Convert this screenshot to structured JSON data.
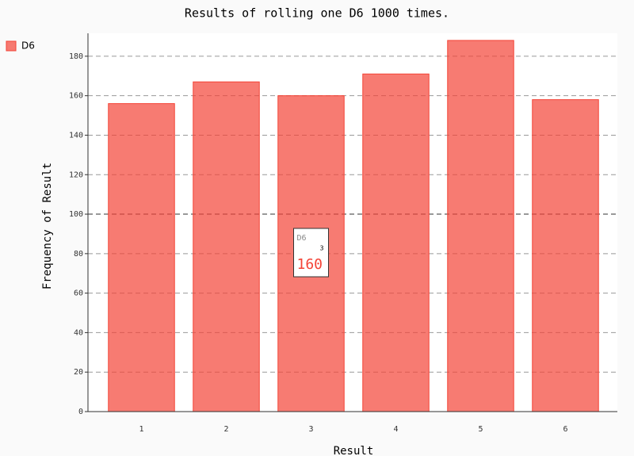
{
  "chart_data": {
    "type": "bar",
    "title": "Results of rolling one D6 1000 times.",
    "x_label": "Result",
    "y_label": "Frequency of Result",
    "categories": [
      "1",
      "2",
      "3",
      "4",
      "5",
      "6"
    ],
    "series": [
      {
        "name": "D6",
        "color": "#f44336",
        "values": [
          156,
          167,
          160,
          171,
          188,
          158
        ]
      }
    ],
    "ylim": [
      0,
      191.6
    ],
    "yticks": [
      0,
      20,
      40,
      60,
      80,
      100,
      120,
      140,
      160,
      180
    ],
    "grid": true,
    "legend": "top-left",
    "tooltip": {
      "series": 0,
      "index": 2
    }
  }
}
